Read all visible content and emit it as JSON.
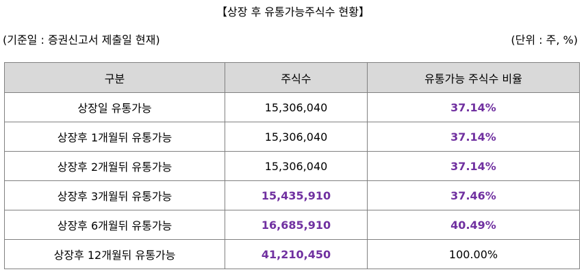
{
  "title": "【상장 후 유통가능주식수 현황】",
  "basis": "(기준일 : 증권신고서 제출일 현재)",
  "unit": "(단위 : 주, %)",
  "table": {
    "headers": [
      "구분",
      "주식수",
      "유통가능 주식수 비율"
    ],
    "rows": [
      {
        "label": "상장일 유통가능",
        "shares": "15,306,040",
        "ratio": "37.14%"
      },
      {
        "label": "상장후 1개월뒤 유통가능",
        "shares": "15,306,040",
        "ratio": "37.14%"
      },
      {
        "label": "상장후 2개월뒤 유통가능",
        "shares": "15,306,040",
        "ratio": "37.14%"
      },
      {
        "label": "상장후 3개월뒤 유통가능",
        "shares": "15,435,910",
        "ratio": "37.46%"
      },
      {
        "label": "상장후 6개월뒤 유통가능",
        "shares": "16,685,910",
        "ratio": "40.49%"
      },
      {
        "label": "상장후 12개월뒤 유통가능",
        "shares": "41,210,450",
        "ratio": "100.00%"
      }
    ]
  },
  "colors": {
    "highlight": "#7030a0",
    "header_bg": "#d9d9d9",
    "border": "#7f7f7f"
  }
}
